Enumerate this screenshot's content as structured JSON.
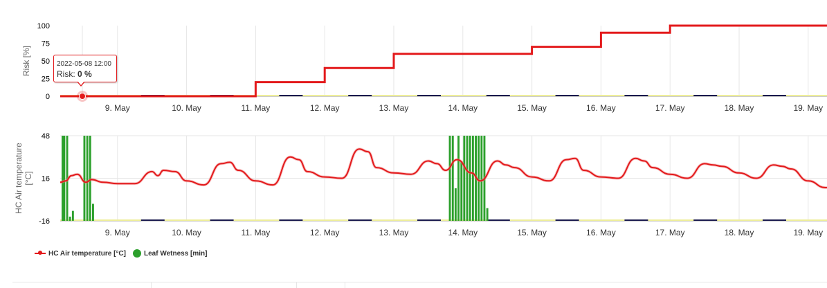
{
  "chart_data": [
    {
      "type": "line",
      "ylabel": "Risk [%]",
      "ylim": [
        0,
        100
      ],
      "yticks": [
        "0",
        "25",
        "50",
        "75",
        "100"
      ],
      "xlim": [
        "2022-05-08 00:00",
        "2022-05-19 12:00"
      ],
      "x_tick_labels": [
        "9. May",
        "10. May",
        "11. May",
        "12. May",
        "13. May",
        "14. May",
        "15. May",
        "16. May",
        "17. May",
        "18. May",
        "19. May"
      ],
      "grid": true,
      "series": [
        {
          "color": "#e31a1c",
          "points": [
            [
              "2022-05-08 00:00",
              0
            ],
            [
              "2022-05-11 00:00",
              0
            ],
            [
              "2022-05-11 00:00",
              20
            ],
            [
              "2022-05-12 00:00",
              20
            ],
            [
              "2022-05-12 00:00",
              40
            ],
            [
              "2022-05-13 00:00",
              40
            ],
            [
              "2022-05-13 00:00",
              60
            ],
            [
              "2022-05-15 00:00",
              60
            ],
            [
              "2022-05-15 00:00",
              70
            ],
            [
              "2022-05-16 00:00",
              70
            ],
            [
              "2022-05-16 00:00",
              90
            ],
            [
              "2022-05-17 00:00",
              90
            ],
            [
              "2022-05-17 00:00",
              100
            ],
            [
              "2022-05-19 12:00",
              100
            ]
          ]
        }
      ],
      "tooltip": {
        "date": "2022-05-08 12:00",
        "label": "Risk:",
        "value": "0 %"
      }
    },
    {
      "type": "line",
      "ylabel": "HC Air temperature [°C]",
      "ylabel_lines": [
        "HC Air temperature",
        "[°C]"
      ],
      "ylim": [
        -16,
        48
      ],
      "yticks": [
        "-16",
        "16",
        "48"
      ],
      "xlim": [
        "2022-05-08 00:00",
        "2022-05-19 12:00"
      ],
      "x_tick_labels": [
        "9. May",
        "10. May",
        "11. May",
        "12. May",
        "13. May",
        "14. May",
        "15. May",
        "16. May",
        "17. May",
        "18. May",
        "19. May"
      ],
      "grid": true,
      "series": [
        {
          "name": "HC Air temperature [°C]",
          "color": "#e31a1c",
          "x": [
            "2022-05-08 00:00",
            "2022-05-08 06:00",
            "2022-05-08 08:00",
            "2022-05-08 10:00",
            "2022-05-08 13:00",
            "2022-05-08 15:00",
            "2022-05-08 19:00",
            "2022-05-09 00:00",
            "2022-05-09 06:00",
            "2022-05-09 12:00",
            "2022-05-09 14:00",
            "2022-05-09 16:00",
            "2022-05-09 20:00",
            "2022-05-10 00:00",
            "2022-05-10 06:00",
            "2022-05-10 12:00",
            "2022-05-10 15:00",
            "2022-05-10 18:00",
            "2022-05-11 00:00",
            "2022-05-11 06:00",
            "2022-05-11 12:00",
            "2022-05-11 15:00",
            "2022-05-11 18:00",
            "2022-05-12 00:00",
            "2022-05-12 06:00",
            "2022-05-12 12:00",
            "2022-05-12 15:00",
            "2022-05-12 18:00",
            "2022-05-13 00:00",
            "2022-05-13 06:00",
            "2022-05-13 12:00",
            "2022-05-13 15:00",
            "2022-05-13 18:00",
            "2022-05-13 22:00",
            "2022-05-14 03:00",
            "2022-05-14 06:00",
            "2022-05-14 12:00",
            "2022-05-14 15:00",
            "2022-05-14 18:00",
            "2022-05-15 00:00",
            "2022-05-15 06:00",
            "2022-05-15 12:00",
            "2022-05-15 15:00",
            "2022-05-15 18:00",
            "2022-05-16 00:00",
            "2022-05-16 06:00",
            "2022-05-16 12:00",
            "2022-05-16 15:00",
            "2022-05-16 18:00",
            "2022-05-17 00:00",
            "2022-05-17 06:00",
            "2022-05-17 12:00",
            "2022-05-17 15:00",
            "2022-05-17 18:00",
            "2022-05-18 00:00",
            "2022-05-18 06:00",
            "2022-05-18 12:00",
            "2022-05-18 15:00",
            "2022-05-18 18:00",
            "2022-05-19 00:00",
            "2022-05-19 06:00",
            "2022-05-19 12:00"
          ],
          "y": [
            13,
            14,
            18,
            19,
            13,
            15,
            13,
            12,
            12,
            21,
            18,
            22,
            21,
            14,
            11,
            27,
            28,
            22,
            14,
            11,
            32,
            30,
            21,
            17,
            16,
            38,
            36,
            24,
            20,
            19,
            29,
            27,
            22,
            30,
            20,
            14,
            29,
            26,
            24,
            17,
            14,
            30,
            31,
            22,
            17,
            16,
            31,
            29,
            24,
            19,
            16,
            27,
            26,
            25,
            20,
            16,
            26,
            25,
            23,
            14,
            9,
            16
          ]
        },
        {
          "name": "Leaf Wetness [min]",
          "color": "#2ca02c",
          "x": [
            "2022-05-08 00:00",
            "2022-05-08 01:00",
            "2022-05-08 02:00",
            "2022-05-08 03:00",
            "2022-05-08 04:00",
            "2022-05-08 05:00",
            "2022-05-08 06:00",
            "2022-05-08 07:00",
            "2022-05-08 08:00",
            "2022-05-08 12:00",
            "2022-05-08 13:00",
            "2022-05-08 14:00",
            "2022-05-08 15:00",
            "2022-05-13 19:00",
            "2022-05-13 20:00",
            "2022-05-13 21:00",
            "2022-05-13 22:00",
            "2022-05-13 23:00",
            "2022-05-14 00:00",
            "2022-05-14 01:00",
            "2022-05-14 02:00",
            "2022-05-14 03:00",
            "2022-05-14 04:00",
            "2022-05-14 05:00",
            "2022-05-14 06:00",
            "2022-05-14 07:00",
            "2022-05-14 08:00"
          ],
          "y": [
            60,
            60,
            60,
            60,
            60,
            60,
            60,
            3,
            7,
            60,
            60,
            60,
            12,
            60,
            60,
            23,
            60,
            42,
            60,
            60,
            60,
            60,
            60,
            60,
            60,
            60,
            9
          ]
        }
      ]
    }
  ],
  "legend": [
    {
      "label": "HC Air temperature [°C]",
      "icon": "line-marker-icon",
      "color": "#e31a1c"
    },
    {
      "label": "Leaf Wetness [min]",
      "icon": "circle-icon",
      "color": "#2ca02c"
    }
  ]
}
